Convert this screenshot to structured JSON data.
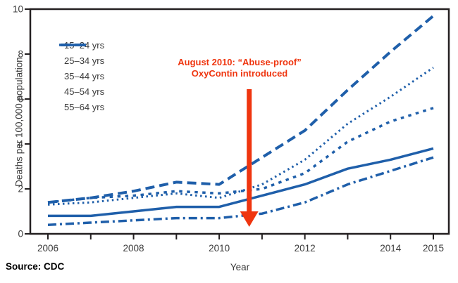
{
  "chart_data": {
    "type": "line",
    "title": "",
    "xlabel": "Year",
    "ylabel": "Deaths per 100,000 population",
    "source": "Source: CDC",
    "x": [
      2006,
      2007,
      2008,
      2009,
      2010,
      2011,
      2012,
      2013,
      2014,
      2015
    ],
    "xtick_labels": [
      2006,
      2008,
      2010,
      2012,
      2014,
      2015
    ],
    "yticks": [
      0,
      2,
      4,
      6,
      8,
      10
    ],
    "xlim": [
      2006,
      2015
    ],
    "ylim": [
      0,
      10
    ],
    "grid": false,
    "legend_position": "top-left",
    "line_color": "#1F5FAA",
    "axis_color": "#231F20",
    "series": [
      {
        "name": "15–24 yrs",
        "line_style": "solid",
        "values": [
          0.8,
          0.8,
          1.0,
          1.2,
          1.2,
          1.7,
          2.2,
          2.9,
          3.3,
          3.8
        ]
      },
      {
        "name": "25–34 yrs",
        "line_style": "long-dash",
        "values": [
          1.4,
          1.6,
          1.9,
          2.3,
          2.2,
          3.4,
          4.6,
          6.4,
          8.1,
          9.7
        ]
      },
      {
        "name": "35–44 yrs",
        "line_style": "dotted",
        "values": [
          1.3,
          1.4,
          1.6,
          1.8,
          1.6,
          2.2,
          3.3,
          4.9,
          6.1,
          7.4
        ]
      },
      {
        "name": "45–54 yrs",
        "line_style": "square-dash",
        "values": [
          1.4,
          1.6,
          1.7,
          1.9,
          1.8,
          2.0,
          2.7,
          4.1,
          5.0,
          5.6
        ]
      },
      {
        "name": "55–64 yrs",
        "line_style": "dash-dot",
        "values": [
          0.4,
          0.5,
          0.6,
          0.7,
          0.7,
          0.9,
          1.4,
          2.2,
          2.8,
          3.4
        ]
      }
    ],
    "annotation": {
      "text_line1": "August 2010: “Abuse-proof”",
      "text_line2": "OxyContin introduced",
      "color": "#EF350F",
      "arrow_points_to_year": 2010.7
    }
  }
}
